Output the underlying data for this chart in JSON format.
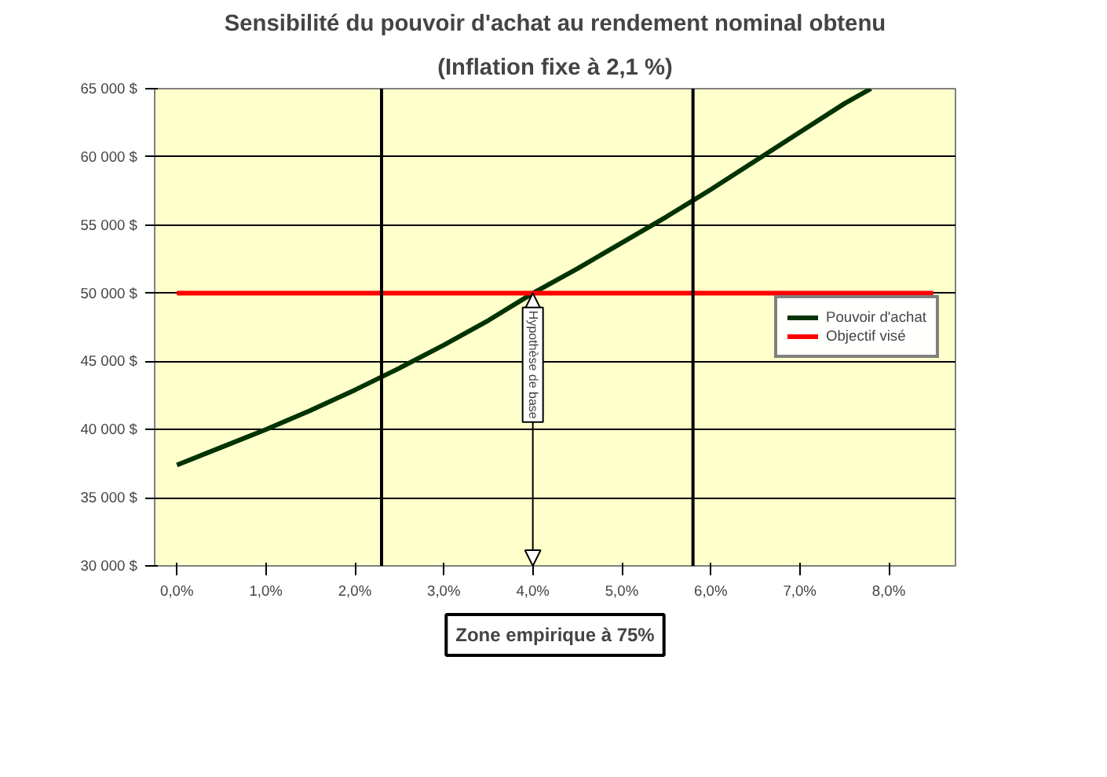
{
  "chart_data": {
    "type": "line",
    "title": "Sensibilité du pouvoir d'achat au rendement nominal obtenu",
    "subtitle": "(Inflation fixe à 2,1 %)",
    "series": [
      {
        "name": "Pouvoir d'achat",
        "color": "#003300",
        "x": [
          0,
          0.5,
          1,
          1.5,
          2,
          2.5,
          3,
          3.5,
          4,
          4.5,
          5,
          5.5,
          6,
          6.5,
          7,
          7.5,
          7.8
        ],
        "values": [
          37400,
          38700,
          40000,
          41400,
          42900,
          44500,
          46200,
          48000,
          50000,
          51800,
          53700,
          55600,
          57600,
          59700,
          61800,
          63900,
          65000
        ]
      },
      {
        "name": "Objectif visé",
        "color": "#ff0000",
        "x": [
          0,
          8.5
        ],
        "values": [
          50000,
          50000
        ]
      }
    ],
    "xlim": [
      -0.25,
      8.75
    ],
    "xticks": [
      {
        "value": 0,
        "label": "0,0%"
      },
      {
        "value": 1,
        "label": "1,0%"
      },
      {
        "value": 2,
        "label": "2,0%"
      },
      {
        "value": 3,
        "label": "3,0%"
      },
      {
        "value": 4,
        "label": "4,0%"
      },
      {
        "value": 5,
        "label": "5,0%"
      },
      {
        "value": 6,
        "label": "6,0%"
      },
      {
        "value": 7,
        "label": "7,0%"
      },
      {
        "value": 8,
        "label": "8,0%"
      }
    ],
    "ylim": [
      30000,
      65000
    ],
    "yticks": [
      {
        "value": 30000,
        "label": "30 000 $"
      },
      {
        "value": 35000,
        "label": "35 000 $"
      },
      {
        "value": 40000,
        "label": "40 000 $"
      },
      {
        "value": 45000,
        "label": "45 000 $"
      },
      {
        "value": 50000,
        "label": "50 000 $"
      },
      {
        "value": 55000,
        "label": "55 000 $"
      },
      {
        "value": 60000,
        "label": "60 000 $"
      },
      {
        "value": 65000,
        "label": "65 000 $"
      }
    ],
    "ref_lines": [
      {
        "axis": "x",
        "value": 2.3,
        "color": "#000000"
      },
      {
        "axis": "x",
        "value": 5.8,
        "color": "#000000"
      }
    ],
    "annotations": [
      {
        "text": "Hypothèse de base",
        "x": 4,
        "y": 50000
      },
      "Zone empirique à 75%"
    ],
    "grid": "y",
    "legend": "right",
    "marker": "none",
    "line_style": "solid"
  }
}
